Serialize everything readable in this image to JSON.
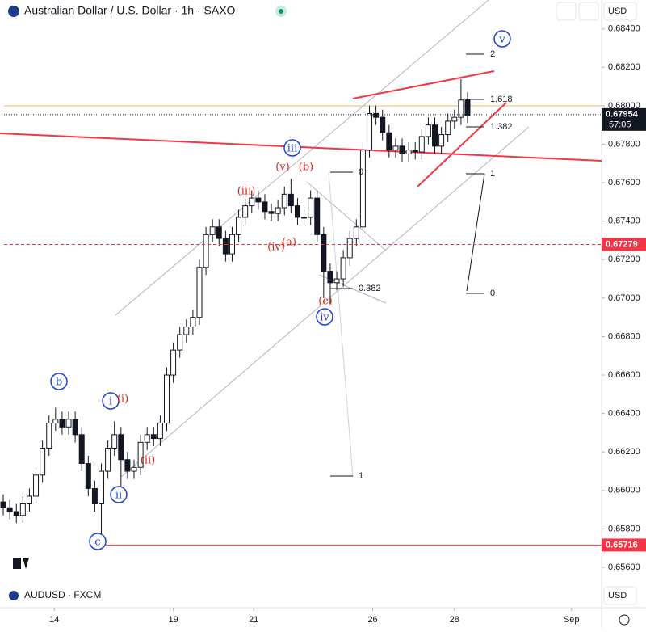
{
  "header": {
    "title": "Australian Dollar / U.S. Dollar · 1h · SAXO",
    "currency": "USD"
  },
  "footer": {
    "symbol": "AUDUSD · FXCM",
    "currency": "USD"
  },
  "chart_data": {
    "type": "candlestick",
    "up_color": "#ffffff",
    "down_color": "#131722",
    "wick_color": "#131722",
    "open": [
      0.6594,
      0.6591,
      0.6589,
      0.6587,
      0.6593,
      0.6597,
      0.6608,
      0.6622,
      0.6635,
      0.6637,
      0.6633,
      0.6637,
      0.6629,
      0.6614,
      0.6601,
      0.6593,
      0.661,
      0.6622,
      0.6629,
      0.6616,
      0.661,
      0.6612,
      0.6625,
      0.6629,
      0.6627,
      0.6635,
      0.666,
      0.6673,
      0.6681,
      0.6685,
      0.669,
      0.6716,
      0.6733,
      0.6737,
      0.6731,
      0.6723,
      0.6733,
      0.6742,
      0.6748,
      0.6752,
      0.675,
      0.6745,
      0.6744,
      0.6747,
      0.6754,
      0.6748,
      0.6742,
      0.6742,
      0.6752,
      0.6733,
      0.6714,
      0.6708,
      0.671,
      0.6721,
      0.6731,
      0.6737,
      0.6777,
      0.6796,
      0.6794,
      0.6786,
      0.6777,
      0.6779,
      0.6775,
      0.6777,
      0.6776,
      0.6784,
      0.679,
      0.6779,
      0.6785,
      0.6792,
      0.6794,
      0.6803
    ],
    "high": [
      0.6598,
      0.6595,
      0.6593,
      0.6597,
      0.6601,
      0.6612,
      0.6626,
      0.6639,
      0.6643,
      0.6641,
      0.6641,
      0.6641,
      0.6633,
      0.6618,
      0.6605,
      0.6614,
      0.6626,
      0.6636,
      0.6633,
      0.662,
      0.6616,
      0.6629,
      0.6633,
      0.6633,
      0.6639,
      0.6664,
      0.6677,
      0.6685,
      0.6689,
      0.6694,
      0.672,
      0.6737,
      0.6741,
      0.6741,
      0.6735,
      0.6737,
      0.6746,
      0.6752,
      0.6756,
      0.6756,
      0.6754,
      0.6749,
      0.6751,
      0.6758,
      0.6762,
      0.6752,
      0.6746,
      0.6756,
      0.6756,
      0.6737,
      0.6718,
      0.6714,
      0.6725,
      0.6735,
      0.6741,
      0.6781,
      0.68,
      0.68,
      0.6798,
      0.679,
      0.6783,
      0.6783,
      0.6781,
      0.6781,
      0.6788,
      0.6794,
      0.6794,
      0.6789,
      0.6796,
      0.6798,
      0.6814,
      0.6807
    ],
    "low": [
      0.6587,
      0.6585,
      0.6583,
      0.6583,
      0.6589,
      0.6593,
      0.6604,
      0.6618,
      0.6631,
      0.6629,
      0.6629,
      0.6625,
      0.661,
      0.6597,
      0.6589,
      0.6572,
      0.6606,
      0.6618,
      0.6596,
      0.6606,
      0.6606,
      0.6608,
      0.6621,
      0.6623,
      0.6623,
      0.6631,
      0.6656,
      0.6669,
      0.6677,
      0.6681,
      0.6686,
      0.6712,
      0.6729,
      0.6727,
      0.6719,
      0.6719,
      0.6729,
      0.6738,
      0.6744,
      0.6746,
      0.6741,
      0.674,
      0.674,
      0.6743,
      0.6744,
      0.6738,
      0.6738,
      0.6738,
      0.6729,
      0.67,
      0.6697,
      0.6704,
      0.6706,
      0.6717,
      0.6727,
      0.6733,
      0.6773,
      0.679,
      0.6782,
      0.6773,
      0.6773,
      0.6771,
      0.6771,
      0.6772,
      0.6772,
      0.678,
      0.6775,
      0.6775,
      0.6781,
      0.6788,
      0.679,
      0.6791
    ],
    "close": [
      0.6591,
      0.6589,
      0.6587,
      0.6593,
      0.6597,
      0.6608,
      0.6622,
      0.6635,
      0.6637,
      0.6633,
      0.6637,
      0.6629,
      0.6614,
      0.6601,
      0.6593,
      0.661,
      0.6622,
      0.6629,
      0.6616,
      0.661,
      0.6612,
      0.6625,
      0.6629,
      0.6627,
      0.6635,
      0.666,
      0.6673,
      0.6681,
      0.6685,
      0.669,
      0.6716,
      0.6733,
      0.6737,
      0.6731,
      0.6723,
      0.6733,
      0.6742,
      0.6748,
      0.6752,
      0.675,
      0.6745,
      0.6744,
      0.6747,
      0.6754,
      0.6748,
      0.6742,
      0.6742,
      0.6752,
      0.6733,
      0.6714,
      0.6708,
      0.671,
      0.6721,
      0.6731,
      0.6737,
      0.6777,
      0.6796,
      0.6794,
      0.6786,
      0.6777,
      0.6779,
      0.6775,
      0.6777,
      0.6776,
      0.6784,
      0.679,
      0.6779,
      0.6785,
      0.6792,
      0.6794,
      0.6803,
      0.6795
    ],
    "xlim": [
      0,
      92
    ],
    "xticks": [
      {
        "value": 8.3,
        "label": "14"
      },
      {
        "value": 26.5,
        "label": "19"
      },
      {
        "value": 38.8,
        "label": "21"
      },
      {
        "value": 57,
        "label": "26"
      },
      {
        "value": 69.5,
        "label": "28"
      },
      {
        "value": 87.4,
        "label": "Sep"
      }
    ],
    "ylim": [
      0.6539,
      0.6855
    ],
    "yticks": [
      {
        "value": 0.656,
        "label": "0.65600"
      },
      {
        "value": 0.658,
        "label": "0.65800"
      },
      {
        "value": 0.66,
        "label": "0.66000"
      },
      {
        "value": 0.662,
        "label": "0.66200"
      },
      {
        "value": 0.664,
        "label": "0.66400"
      },
      {
        "value": 0.666,
        "label": "0.66600"
      },
      {
        "value": 0.668,
        "label": "0.66800"
      },
      {
        "value": 0.67,
        "label": "0.67000"
      },
      {
        "value": 0.672,
        "label": "0.67200"
      },
      {
        "value": 0.674,
        "label": "0.67400"
      },
      {
        "value": 0.676,
        "label": "0.67600"
      },
      {
        "value": 0.678,
        "label": "0.67800"
      },
      {
        "value": 0.68,
        "label": "0.68000"
      },
      {
        "value": 0.682,
        "label": "0.68200"
      },
      {
        "value": 0.684,
        "label": "0.68400"
      }
    ],
    "price_lines": [
      {
        "value": 0.67954,
        "label": "0.67954",
        "countdown": "57:05",
        "color": "#131722",
        "style": "dotted"
      },
      {
        "value": 0.67279,
        "label": "0.67279",
        "color": "#f23645",
        "style": "dashed"
      },
      {
        "value": 0.65716,
        "label": "0.65716",
        "color": "#f23645",
        "style": "solid"
      }
    ],
    "wave_labels": [
      {
        "text": "v",
        "style": "circle"
      },
      {
        "text": "iii",
        "style": "circle"
      },
      {
        "text": "iv",
        "style": "circle"
      },
      {
        "text": "b",
        "style": "circle"
      },
      {
        "text": "i",
        "style": "circle"
      },
      {
        "text": "ii",
        "style": "circle"
      },
      {
        "text": "c",
        "style": "circle"
      },
      {
        "text": "(v)",
        "style": "red"
      },
      {
        "text": "(b)",
        "style": "red"
      },
      {
        "text": "(iii)",
        "style": "red"
      },
      {
        "text": "(iv)",
        "style": "red"
      },
      {
        "text": "(a)",
        "style": "red"
      },
      {
        "text": "(c)",
        "style": "red"
      },
      {
        "text": "(i)",
        "style": "red"
      },
      {
        "text": "(ii)",
        "style": "red"
      }
    ],
    "fib_labels": [
      "2",
      "1.618",
      "1.382",
      "1",
      "0",
      "0",
      "0.382",
      "1"
    ]
  }
}
